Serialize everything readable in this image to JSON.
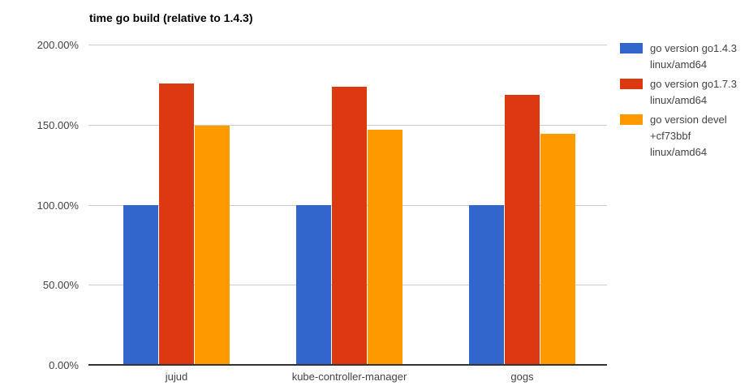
{
  "chart_data": {
    "type": "bar",
    "title": "time go build (relative to 1.4.3)",
    "categories": [
      "jujud",
      "kube-controller-manager",
      "gogs"
    ],
    "series": [
      {
        "name": "go version go1.4.3 linux/amd64",
        "color": "#3366cc",
        "values": [
          100,
          100,
          100
        ]
      },
      {
        "name": "go version go1.7.3 linux/amd64",
        "color": "#dc3912",
        "values": [
          175.8,
          173.9,
          168.4
        ]
      },
      {
        "name": "go version devel +cf73bbf linux/amd64",
        "color": "#ff9900",
        "values": [
          149.3,
          146.9,
          144.2
        ]
      }
    ],
    "xlabel": "",
    "ylabel": "",
    "ylim": [
      0,
      200
    ],
    "y_ticks": [
      {
        "value": 200,
        "label": "200.00%"
      },
      {
        "value": 150,
        "label": "150.00%"
      },
      {
        "value": 100,
        "label": "100.00%"
      },
      {
        "value": 50,
        "label": "50.00%"
      },
      {
        "value": 0,
        "label": "0.00%"
      }
    ],
    "grid": true,
    "legend_position": "right"
  },
  "colors": {
    "title": "#000000",
    "axis_text": "#444444",
    "gridline": "#cccccc",
    "baseline": "#333333",
    "background": "#ffffff"
  }
}
